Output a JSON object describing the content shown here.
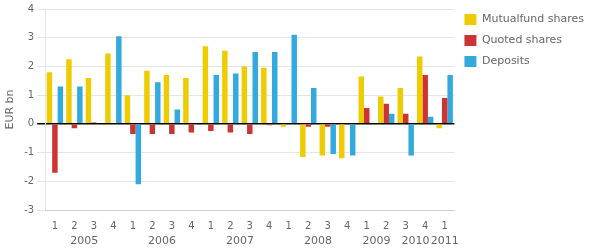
{
  "chart_data": {
    "type": "bar",
    "ylabel": "EUR bn",
    "categories": [
      "1",
      "2",
      "3",
      "4",
      "1",
      "2",
      "3",
      "4",
      "1",
      "2",
      "3",
      "4",
      "1",
      "2",
      "3",
      "4",
      "1",
      "2",
      "3",
      "4",
      "1"
    ],
    "series": [
      {
        "name": "Mutualfund shares",
        "color": "#EECC00",
        "values": [
          1.8,
          2.25,
          1.6,
          2.45,
          1.0,
          1.85,
          1.7,
          1.6,
          2.7,
          2.55,
          2.0,
          1.95,
          -0.1,
          -1.15,
          -1.1,
          -1.2,
          1.65,
          0.95,
          1.25,
          2.35,
          -0.15
        ]
      },
      {
        "name": "Quoted shares",
        "color": "#CC3333",
        "values": [
          -1.7,
          -0.15,
          0.05,
          0.0,
          -0.35,
          -0.35,
          -0.35,
          -0.3,
          -0.25,
          -0.3,
          -0.35,
          -0.05,
          0.0,
          -0.1,
          -0.1,
          0.0,
          0.55,
          0.7,
          0.35,
          1.7,
          0.9
        ]
      },
      {
        "name": "Deposits",
        "color": "#33AADD",
        "values": [
          1.3,
          1.3,
          0.0,
          3.05,
          -2.1,
          1.45,
          0.5,
          0.0,
          1.7,
          1.75,
          2.5,
          2.5,
          3.1,
          1.25,
          -1.05,
          -1.1,
          0.0,
          0.35,
          -1.1,
          0.25,
          1.7
        ]
      }
    ],
    "annotations": [
      {
        "text": "2005",
        "x": 2.5
      },
      {
        "text": "2006",
        "x": 6.5
      },
      {
        "text": "2007",
        "x": 10.5
      },
      {
        "text": "2008",
        "x": 14.5
      },
      {
        "text": "2009",
        "x": 17.5
      },
      {
        "text": "2010",
        "x": 19.5
      },
      {
        "text": "2011",
        "x": 21.0
      }
    ],
    "ylim": [
      -3,
      4
    ],
    "yticks": [
      -3,
      -2,
      -1,
      0,
      1,
      2,
      3,
      4
    ],
    "grid": true,
    "legend": "right"
  }
}
